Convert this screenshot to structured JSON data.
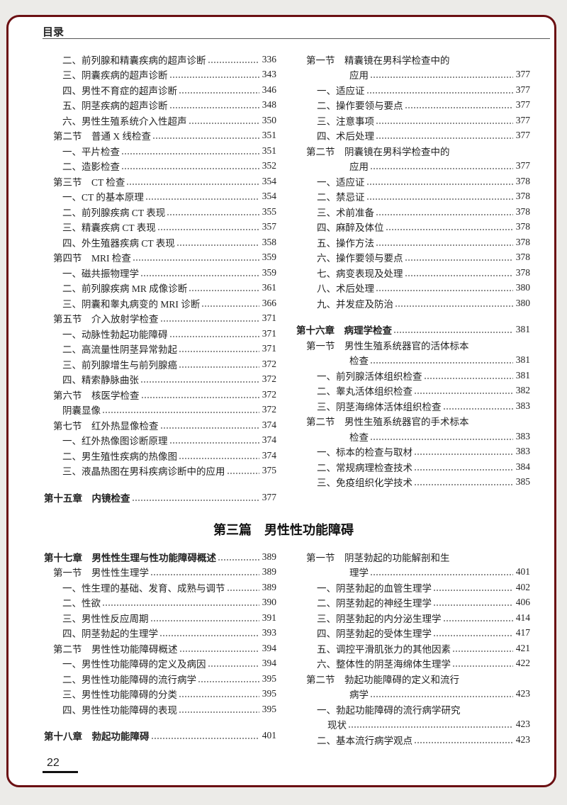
{
  "header": {
    "title": "目录"
  },
  "part_title": "第三篇　男性性功能障碍",
  "page_number": "22",
  "colors": {
    "frame": "#6b0f12",
    "background": "#ecebe8"
  },
  "blocks": [
    {
      "id": "top-left",
      "entries": [
        {
          "level": "item",
          "text": "二、前列腺和精囊疾病的超声诊断",
          "page": "336"
        },
        {
          "level": "item",
          "text": "三、阴囊疾病的超声诊断",
          "page": "343"
        },
        {
          "level": "item",
          "text": "四、男性不育症的超声诊断",
          "page": "346"
        },
        {
          "level": "item",
          "text": "五、阴茎疾病的超声诊断",
          "page": "348"
        },
        {
          "level": "item",
          "text": "六、男性生殖系统介入性超声",
          "page": "350"
        },
        {
          "level": "section",
          "text": "第二节　普通 X 线检查",
          "page": "351"
        },
        {
          "level": "item",
          "text": "一、平片检查",
          "page": "351"
        },
        {
          "level": "item",
          "text": "二、造影检查",
          "page": "352"
        },
        {
          "level": "section",
          "text": "第三节　CT 检查",
          "page": "354"
        },
        {
          "level": "item",
          "text": "一、CT 的基本原理",
          "page": "354"
        },
        {
          "level": "item",
          "text": "二、前列腺疾病 CT 表现",
          "page": "355"
        },
        {
          "level": "item",
          "text": "三、精囊疾病 CT 表现",
          "page": "357"
        },
        {
          "level": "item",
          "text": "四、外生殖器疾病 CT 表现",
          "page": "358"
        },
        {
          "level": "section",
          "text": "第四节　MRI 检查",
          "page": "359"
        },
        {
          "level": "item",
          "text": "一、磁共振物理学",
          "page": "359"
        },
        {
          "level": "item",
          "text": "二、前列腺疾病 MR 成像诊断",
          "page": "361"
        },
        {
          "level": "item",
          "text": "三、阴囊和睾丸病变的 MRI 诊断",
          "page": "366"
        },
        {
          "level": "section",
          "text": "第五节　介入放射学检查",
          "page": "371"
        },
        {
          "level": "item",
          "text": "一、动脉性勃起功能障碍",
          "page": "371"
        },
        {
          "level": "item",
          "text": "二、高流量性阴茎异常勃起",
          "page": "371"
        },
        {
          "level": "item",
          "text": "三、前列腺增生与前列腺癌",
          "page": "372"
        },
        {
          "level": "item",
          "text": "四、精索静脉曲张",
          "page": "372"
        },
        {
          "level": "section",
          "text": "第六节　核医学检查",
          "page": "372"
        },
        {
          "level": "item",
          "text": "阴囊显像",
          "page": "372"
        },
        {
          "level": "section",
          "text": "第七节　红外热显像检查",
          "page": "374"
        },
        {
          "level": "item",
          "text": "一、红外热像图诊断原理",
          "page": "374"
        },
        {
          "level": "item",
          "text": "二、男生殖性疾病的热像图",
          "page": "374"
        },
        {
          "level": "item",
          "text": "三、液晶热图在男科疾病诊断中的应用",
          "page": "375"
        },
        {
          "level": "gap"
        },
        {
          "level": "chapter",
          "text": "第十五章　内镜检查",
          "page": "377"
        }
      ]
    },
    {
      "id": "top-right",
      "entries": [
        {
          "level": "section",
          "text": "第一节　精囊镜在男科学检查中的"
        },
        {
          "level": "cont",
          "text": "应用",
          "page": "377"
        },
        {
          "level": "item",
          "text": "一、适应证",
          "page": "377"
        },
        {
          "level": "item",
          "text": "二、操作要领与要点",
          "page": "377"
        },
        {
          "level": "item",
          "text": "三、注意事项",
          "page": "377"
        },
        {
          "level": "item",
          "text": "四、术后处理",
          "page": "377"
        },
        {
          "level": "section",
          "text": "第二节　阴囊镜在男科学检查中的"
        },
        {
          "level": "cont",
          "text": "应用",
          "page": "377"
        },
        {
          "level": "item",
          "text": "一、适应证",
          "page": "378"
        },
        {
          "level": "item",
          "text": "二、禁忌证",
          "page": "378"
        },
        {
          "level": "item",
          "text": "三、术前准备",
          "page": "378"
        },
        {
          "level": "item",
          "text": "四、麻醉及体位",
          "page": "378"
        },
        {
          "level": "item",
          "text": "五、操作方法",
          "page": "378"
        },
        {
          "level": "item",
          "text": "六、操作要领与要点",
          "page": "378"
        },
        {
          "level": "item",
          "text": "七、病变表现及处理",
          "page": "378"
        },
        {
          "level": "item",
          "text": "八、术后处理",
          "page": "380"
        },
        {
          "level": "item",
          "text": "九、并发症及防治",
          "page": "380"
        },
        {
          "level": "gap"
        },
        {
          "level": "chapter",
          "text": "第十六章　病理学检查",
          "page": "381"
        },
        {
          "level": "section",
          "text": "第一节　男性生殖系统器官的活体标本"
        },
        {
          "level": "cont",
          "text": "检查",
          "page": "381"
        },
        {
          "level": "item",
          "text": "一、前列腺活体组织检查",
          "page": "381"
        },
        {
          "level": "item",
          "text": "二、睾丸活体组织检查",
          "page": "382"
        },
        {
          "level": "item",
          "text": "三、阴茎海绵体活体组织检查",
          "page": "383"
        },
        {
          "level": "section",
          "text": "第二节　男性生殖系统器官的手术标本"
        },
        {
          "level": "cont",
          "text": "检查",
          "page": "383"
        },
        {
          "level": "item",
          "text": "一、标本的检查与取材",
          "page": "383"
        },
        {
          "level": "item",
          "text": "二、常规病理检查技术",
          "page": "384"
        },
        {
          "level": "item",
          "text": "三、免疫组织化学技术",
          "page": "385"
        }
      ]
    },
    {
      "id": "bottom-left",
      "entries": [
        {
          "level": "chapter",
          "text": "第十七章　男性性生理与性功能障碍概述",
          "page": "389"
        },
        {
          "level": "section",
          "text": "第一节　男性性生理学",
          "page": "389"
        },
        {
          "level": "item",
          "text": "一、性生理的基础、发育、成熟与调节",
          "page": "389"
        },
        {
          "level": "item",
          "text": "二、性欲",
          "page": "390"
        },
        {
          "level": "item",
          "text": "三、男性性反应周期",
          "page": "391"
        },
        {
          "level": "item",
          "text": "四、阴茎勃起的生理学",
          "page": "393"
        },
        {
          "level": "section",
          "text": "第二节　男性性功能障碍概述",
          "page": "394"
        },
        {
          "level": "item",
          "text": "一、男性性功能障碍的定义及病因",
          "page": "394"
        },
        {
          "level": "item",
          "text": "二、男性性功能障碍的流行病学",
          "page": "395"
        },
        {
          "level": "item",
          "text": "三、男性性功能障碍的分类",
          "page": "395"
        },
        {
          "level": "item",
          "text": "四、男性性功能障碍的表现",
          "page": "395"
        },
        {
          "level": "gap"
        },
        {
          "level": "chapter",
          "text": "第十八章　勃起功能障碍",
          "page": "401"
        }
      ]
    },
    {
      "id": "bottom-right",
      "entries": [
        {
          "level": "section",
          "text": "第一节　阴茎勃起的功能解剖和生"
        },
        {
          "level": "cont",
          "text": "理学",
          "page": "401"
        },
        {
          "level": "item",
          "text": "一、阴茎勃起的血管生理学",
          "page": "402"
        },
        {
          "level": "item",
          "text": "二、阴茎勃起的神经生理学",
          "page": "406"
        },
        {
          "level": "item",
          "text": "三、阴茎勃起的内分泌生理学",
          "page": "414"
        },
        {
          "level": "item",
          "text": "四、阴茎勃起的受体生理学",
          "page": "417"
        },
        {
          "level": "item",
          "text": "五、调控平滑肌张力的其他因素",
          "page": "421"
        },
        {
          "level": "item",
          "text": "六、整体性的阴茎海绵体生理学",
          "page": "422"
        },
        {
          "level": "section",
          "text": "第二节　勃起功能障碍的定义和流行"
        },
        {
          "level": "cont",
          "text": "病学",
          "page": "423"
        },
        {
          "level": "item",
          "text": "一、勃起功能障碍的流行病学研究"
        },
        {
          "level": "item-cont",
          "text": "现状",
          "page": "423"
        },
        {
          "level": "item",
          "text": "二、基本流行病学观点",
          "page": "423"
        }
      ]
    }
  ]
}
